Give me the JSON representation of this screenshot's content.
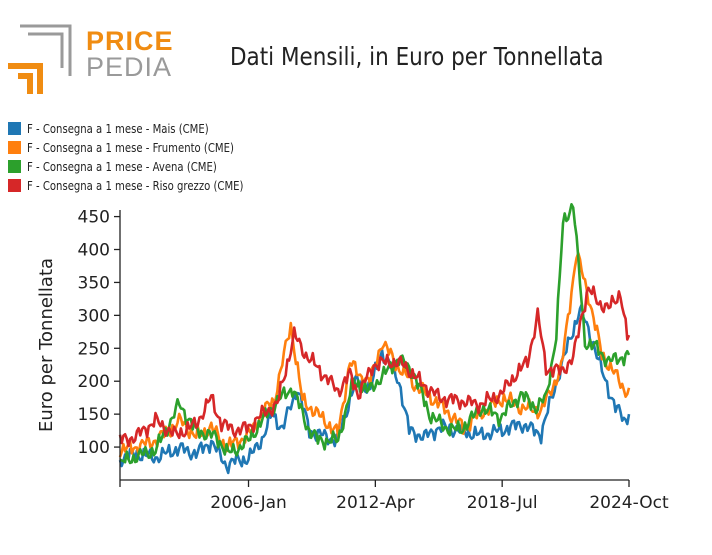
{
  "logo": {
    "word_1": "PRICE",
    "word_2": "PEDIA"
  },
  "colors": {
    "mais": "#1f77b4",
    "frumento": "#ff7f0e",
    "avena": "#2ca02c",
    "riso": "#d62728",
    "logo_orange": "#f08c12",
    "logo_grey": "#9a9a9a"
  },
  "chart_data": {
    "type": "line",
    "title": "Dati Mensili, in Euro per Tonnellata",
    "xlabel": "",
    "ylabel": "Euro per Tonnellata",
    "x_range": [
      "1999-09",
      "2024-10"
    ],
    "ylim": [
      50,
      460
    ],
    "y_ticks": [
      100,
      150,
      200,
      250,
      300,
      350,
      400,
      450
    ],
    "x_ticks": [
      {
        "date": "2006-01",
        "label": "2006-Jan"
      },
      {
        "date": "2012-04",
        "label": "2012-Apr"
      },
      {
        "date": "2018-07",
        "label": "2018-Jul"
      },
      {
        "date": "2024-10",
        "label": "2024-Oct"
      }
    ],
    "grid": false,
    "legend_position": "top-left",
    "series": [
      {
        "name": "F - Consegna a 1 mese - Mais (CME)",
        "color": "#1f77b4",
        "points": [
          [
            "1999-09",
            82
          ],
          [
            "2000-06",
            90
          ],
          [
            "2001-06",
            84
          ],
          [
            "2002-08",
            98
          ],
          [
            "2003-06",
            90
          ],
          [
            "2004-03",
            108
          ],
          [
            "2004-12",
            72
          ],
          [
            "2005-06",
            80
          ],
          [
            "2006-01",
            82
          ],
          [
            "2006-09",
            112
          ],
          [
            "2007-03",
            150
          ],
          [
            "2007-09",
            128
          ],
          [
            "2008-06",
            190
          ],
          [
            "2009-01",
            125
          ],
          [
            "2009-06",
            120
          ],
          [
            "2010-06",
            110
          ],
          [
            "2011-04",
            200
          ],
          [
            "2012-01",
            190
          ],
          [
            "2012-08",
            245
          ],
          [
            "2013-06",
            200
          ],
          [
            "2013-12",
            125
          ],
          [
            "2014-09",
            115
          ],
          [
            "2015-06",
            130
          ],
          [
            "2016-06",
            125
          ],
          [
            "2017-06",
            118
          ],
          [
            "2018-06",
            125
          ],
          [
            "2019-06",
            135
          ],
          [
            "2020-06",
            120
          ],
          [
            "2021-05",
            215
          ],
          [
            "2022-05",
            310
          ],
          [
            "2022-12",
            265
          ],
          [
            "2023-06",
            215
          ],
          [
            "2024-02",
            160
          ],
          [
            "2024-08",
            140
          ],
          [
            "2024-10",
            150
          ]
        ]
      },
      {
        "name": "F - Consegna a 1 mese - Frumento (CME)",
        "color": "#ff7f0e",
        "points": [
          [
            "1999-09",
            95
          ],
          [
            "2000-06",
            100
          ],
          [
            "2001-06",
            110
          ],
          [
            "2002-09",
            140
          ],
          [
            "2003-06",
            115
          ],
          [
            "2004-03",
            130
          ],
          [
            "2004-12",
            100
          ],
          [
            "2005-06",
            108
          ],
          [
            "2006-01",
            118
          ],
          [
            "2006-10",
            155
          ],
          [
            "2007-04",
            170
          ],
          [
            "2008-02",
            285
          ],
          [
            "2008-09",
            170
          ],
          [
            "2009-06",
            150
          ],
          [
            "2010-06",
            120
          ],
          [
            "2011-01",
            230
          ],
          [
            "2011-06",
            210
          ],
          [
            "2012-01",
            200
          ],
          [
            "2012-08",
            260
          ],
          [
            "2013-06",
            220
          ],
          [
            "2014-05",
            190
          ],
          [
            "2015-06",
            165
          ],
          [
            "2016-08",
            130
          ],
          [
            "2017-06",
            150
          ],
          [
            "2018-08",
            175
          ],
          [
            "2019-06",
            160
          ],
          [
            "2020-06",
            155
          ],
          [
            "2021-06",
            220
          ],
          [
            "2022-03",
            395
          ],
          [
            "2022-10",
            330
          ],
          [
            "2023-06",
            240
          ],
          [
            "2024-02",
            210
          ],
          [
            "2024-08",
            185
          ],
          [
            "2024-10",
            190
          ]
        ]
      },
      {
        "name": "F - Consegna a 1 mese - Avena (CME)",
        "color": "#2ca02c",
        "points": [
          [
            "1999-09",
            75
          ],
          [
            "2000-06",
            85
          ],
          [
            "2001-06",
            95
          ],
          [
            "2002-08",
            165
          ],
          [
            "2003-06",
            125
          ],
          [
            "2004-06",
            115
          ],
          [
            "2005-01",
            90
          ],
          [
            "2005-08",
            100
          ],
          [
            "2006-01",
            110
          ],
          [
            "2006-09",
            140
          ],
          [
            "2007-06",
            170
          ],
          [
            "2008-03",
            190
          ],
          [
            "2008-12",
            130
          ],
          [
            "2009-06",
            110
          ],
          [
            "2010-06",
            110
          ],
          [
            "2011-03",
            200
          ],
          [
            "2011-12",
            185
          ],
          [
            "2012-09",
            210
          ],
          [
            "2013-06",
            235
          ],
          [
            "2014-03",
            210
          ],
          [
            "2014-12",
            150
          ],
          [
            "2015-09",
            130
          ],
          [
            "2016-06",
            125
          ],
          [
            "2017-07",
            160
          ],
          [
            "2018-06",
            145
          ],
          [
            "2019-06",
            180
          ],
          [
            "2020-03",
            160
          ],
          [
            "2020-09",
            175
          ],
          [
            "2021-03",
            270
          ],
          [
            "2021-07",
            440
          ],
          [
            "2022-01",
            470
          ],
          [
            "2022-08",
            260
          ],
          [
            "2023-03",
            250
          ],
          [
            "2023-10",
            230
          ],
          [
            "2024-04",
            235
          ],
          [
            "2024-10",
            240
          ]
        ]
      },
      {
        "name": "F - Consegna a 1 mese - Riso grezzo (CME)",
        "color": "#d62728",
        "points": [
          [
            "1999-09",
            110
          ],
          [
            "2000-06",
            115
          ],
          [
            "2001-06",
            140
          ],
          [
            "2002-06",
            118
          ],
          [
            "2003-06",
            135
          ],
          [
            "2004-03",
            175
          ],
          [
            "2004-09",
            135
          ],
          [
            "2005-06",
            125
          ],
          [
            "2006-01",
            130
          ],
          [
            "2006-09",
            150
          ],
          [
            "2007-06",
            165
          ],
          [
            "2008-04",
            270
          ],
          [
            "2008-11",
            240
          ],
          [
            "2009-06",
            220
          ],
          [
            "2010-06",
            185
          ],
          [
            "2011-01",
            210
          ],
          [
            "2011-06",
            180
          ],
          [
            "2012-03",
            225
          ],
          [
            "2013-01",
            230
          ],
          [
            "2013-09",
            225
          ],
          [
            "2014-06",
            200
          ],
          [
            "2015-06",
            175
          ],
          [
            "2016-06",
            170
          ],
          [
            "2017-06",
            165
          ],
          [
            "2018-06",
            180
          ],
          [
            "2019-03",
            210
          ],
          [
            "2019-10",
            230
          ],
          [
            "2020-04",
            300
          ],
          [
            "2020-09",
            220
          ],
          [
            "2021-06",
            215
          ],
          [
            "2022-01",
            235
          ],
          [
            "2022-06",
            300
          ],
          [
            "2022-10",
            340
          ],
          [
            "2023-04",
            320
          ],
          [
            "2023-10",
            310
          ],
          [
            "2024-05",
            335
          ],
          [
            "2024-09",
            265
          ],
          [
            "2024-10",
            270
          ]
        ]
      }
    ]
  }
}
